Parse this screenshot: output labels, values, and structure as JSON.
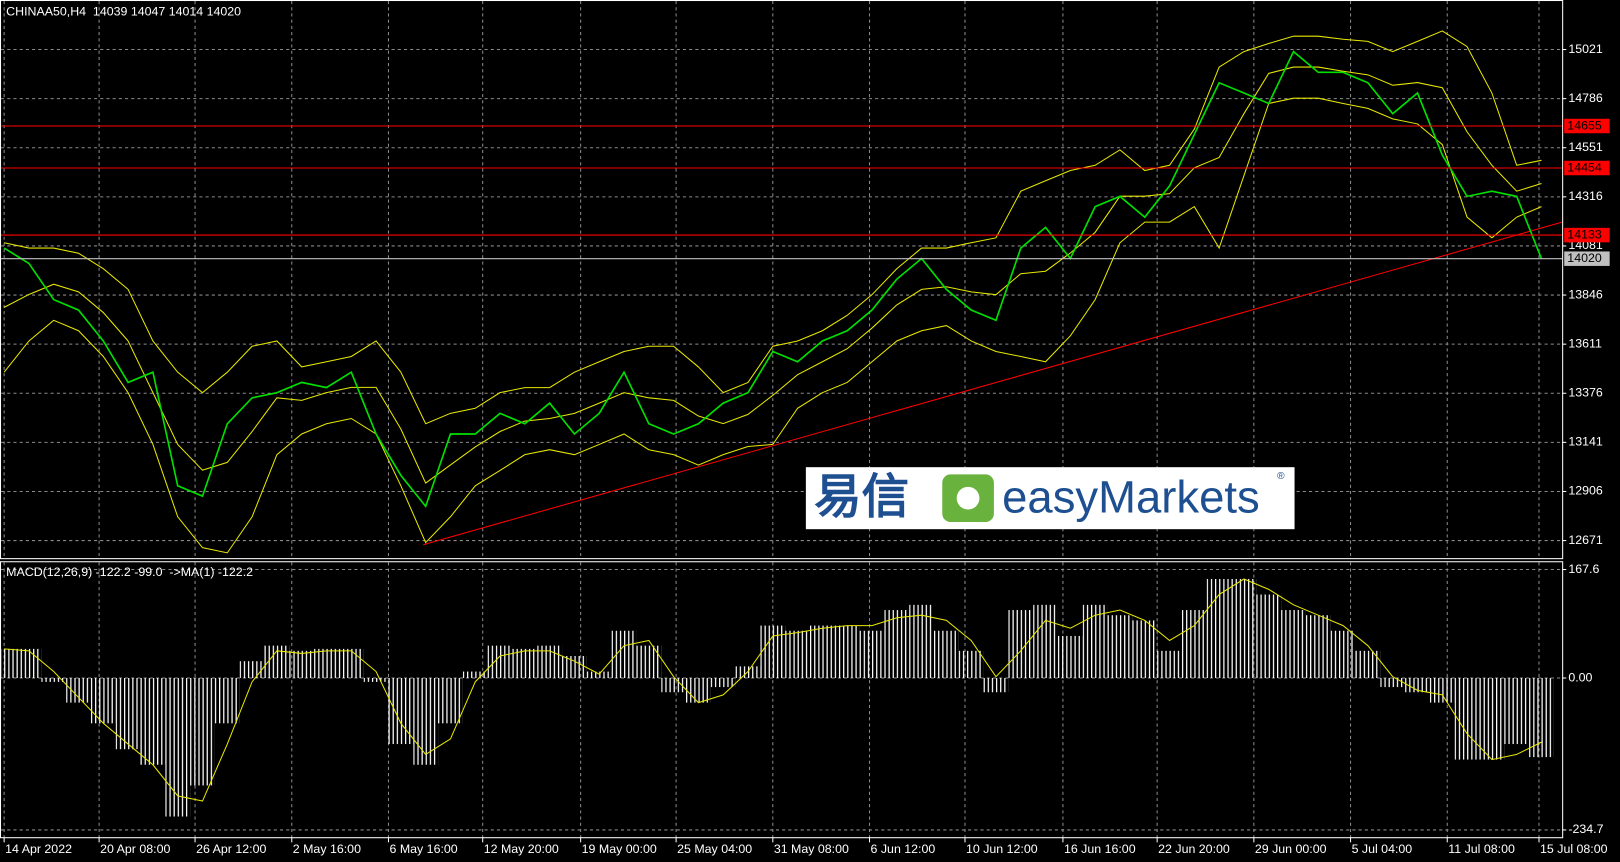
{
  "chart_data": [
    {
      "type": "line",
      "title": "CHINAA50,H4  14039 14047 14014 14020",
      "xlim": [
        0,
        62
      ],
      "ylim": [
        12587,
        15258
      ],
      "yticks": [
        15021,
        14786,
        14551,
        14316,
        14081,
        13846,
        13611,
        13376,
        13141,
        12906,
        12671
      ],
      "grid": true,
      "series": [
        {
          "color": "#e8e800",
          "values": [
            14096,
            14071,
            14071,
            14046,
            13972,
            13873,
            13626,
            13477,
            13379,
            13477,
            13601,
            13626,
            13502,
            13527,
            13552,
            13626,
            13477,
            13230,
            13280,
            13304,
            13379,
            13403,
            13403,
            13477,
            13527,
            13576,
            13601,
            13601,
            13502,
            13379,
            13428,
            13601,
            13626,
            13675,
            13749,
            13848,
            13972,
            14071,
            14071,
            14096,
            14120,
            14343,
            14393,
            14442,
            14467,
            14541,
            14442,
            14467,
            14640,
            14937,
            15011,
            15050,
            15085,
            15085,
            15070,
            15060,
            15011,
            15060,
            15110,
            15035,
            14813,
            14467,
            14491
          ]
        },
        {
          "color": "#e8e800",
          "values": [
            13787,
            13849,
            13898,
            13861,
            13762,
            13626,
            13379,
            13131,
            13008,
            13045,
            13193,
            13354,
            13342,
            13379,
            13404,
            13404,
            13205,
            12946,
            13033,
            13119,
            13193,
            13243,
            13255,
            13280,
            13329,
            13379,
            13354,
            13342,
            13267,
            13231,
            13275,
            13366,
            13465,
            13527,
            13589,
            13688,
            13799,
            13873,
            13886,
            13861,
            13848,
            13948,
            13960,
            14047,
            14146,
            14319,
            14319,
            14331,
            14455,
            14504,
            14714,
            14907,
            14937,
            14937,
            14917,
            14900,
            14850,
            14863,
            14838,
            14627,
            14467,
            14343,
            14380
          ]
        },
        {
          "color": "#e8e800",
          "values": [
            13477,
            13626,
            13725,
            13675,
            13552,
            13379,
            13131,
            12785,
            12637,
            12612,
            12785,
            13082,
            13181,
            13230,
            13255,
            13181,
            12933,
            12661,
            12785,
            12933,
            13007,
            13082,
            13106,
            13082,
            13131,
            13181,
            13106,
            13082,
            13032,
            13082,
            13121,
            13131,
            13304,
            13379,
            13428,
            13527,
            13626,
            13675,
            13700,
            13626,
            13576,
            13552,
            13527,
            13651,
            13824,
            14096,
            14195,
            14195,
            14269,
            14071,
            14417,
            14763,
            14788,
            14788,
            14763,
            14739,
            14689,
            14665,
            14566,
            14219,
            14120,
            14219,
            14269
          ]
        },
        {
          "color": "#00e000",
          "values": [
            14071,
            13997,
            13824,
            13774,
            13626,
            13428,
            13477,
            12933,
            12884,
            13230,
            13354,
            13379,
            13428,
            13403,
            13477,
            13181,
            12983,
            12835,
            13181,
            13181,
            13280,
            13230,
            13329,
            13181,
            13280,
            13477,
            13230,
            13181,
            13230,
            13329,
            13379,
            13576,
            13527,
            13626,
            13675,
            13774,
            13922,
            14021,
            13873,
            13774,
            13725,
            14071,
            14170,
            14021,
            14269,
            14318,
            14219,
            14368,
            14615,
            14862,
            14813,
            14763,
            15011,
            14912,
            14912,
            14862,
            14714,
            14813,
            14516,
            14318,
            14343,
            14318,
            14020
          ]
        }
      ],
      "hlines": [
        {
          "value": 14655,
          "color": "#ff0000"
        },
        {
          "value": 14454,
          "color": "#ff0000"
        },
        {
          "value": 14133,
          "color": "#ff0000"
        },
        {
          "value": 14020,
          "color": "#c0c0c0"
        }
      ],
      "trendline": {
        "color": "#ff0000",
        "x": [
          16.9,
          62.83
        ],
        "y": [
          12651,
          14195
        ]
      }
    },
    {
      "type": "bar",
      "title": "MACD(12,26,9) -122.2 -99.0  ->MA(1) -122.2",
      "xlim": [
        0,
        62
      ],
      "ylim": [
        -245.9,
        180.4
      ],
      "yticks": [
        167.6,
        {
          "value": 0,
          "label": "0.00"
        },
        -234.7
      ],
      "xticks": [
        {
          "value": 0,
          "label": "14 Apr 2022"
        },
        {
          "value": 3.83,
          "label": "20 Apr 08:00"
        },
        {
          "value": 7.7,
          "label": "26 Apr 12:00"
        },
        {
          "value": 11.6,
          "label": "2 May 16:00"
        },
        {
          "value": 15.5,
          "label": "6 May 16:00"
        },
        {
          "value": 19.3,
          "label": "12 May 20:00"
        },
        {
          "value": 23.25,
          "label": "19 May 00:00"
        },
        {
          "value": 27.1,
          "label": "25 May 04:00"
        },
        {
          "value": 31,
          "label": "31 May 08:00"
        },
        {
          "value": 34.9,
          "label": "6 Jun 12:00"
        },
        {
          "value": 38.75,
          "label": "10 Jun 12:00"
        },
        {
          "value": 42.7,
          "label": "16 Jun 16:00"
        },
        {
          "value": 46.5,
          "label": "22 Jun 20:00"
        },
        {
          "value": 50.4,
          "label": "29 Jun 00:00"
        },
        {
          "value": 54.3,
          "label": "5 Jul 04:00"
        },
        {
          "value": 58.2,
          "label": "11 Jul 08:00"
        },
        {
          "value": 61.9,
          "label": "15 Jul 08:00"
        }
      ],
      "series": [
        {
          "type": "bar",
          "color": "#ffffff",
          "values": [
            45,
            45,
            -6,
            -38,
            -70,
            -110,
            -134,
            -214,
            -166,
            -70,
            26,
            50,
            42,
            45,
            45,
            -6,
            -102,
            -134,
            -70,
            10,
            50,
            45,
            50,
            34,
            10,
            73,
            50,
            -22,
            -38,
            -14,
            18,
            81,
            73,
            81,
            81,
            73,
            105,
            113,
            73,
            42,
            -22,
            105,
            113,
            65,
            113,
            97,
            89,
            42,
            105,
            153,
            153,
            129,
            105,
            97,
            73,
            42,
            -14,
            -22,
            -38,
            -126,
            -126,
            -102,
            -122.2
          ]
        },
        {
          "type": "line",
          "color": "#e8e800",
          "values": [
            45,
            42,
            10,
            -30,
            -70,
            -102,
            -134,
            -182,
            -190,
            -102,
            -6,
            42,
            38,
            42,
            42,
            10,
            -70,
            -118,
            -94,
            -6,
            34,
            42,
            42,
            26,
            6,
            50,
            58,
            2,
            -38,
            -26,
            10,
            65,
            70,
            77,
            81,
            81,
            93,
            97,
            89,
            58,
            2,
            42,
            89,
            77,
            97,
            105,
            89,
            58,
            81,
            129,
            153,
            137,
            113,
            97,
            81,
            50,
            2,
            -19,
            -26,
            -86,
            -126,
            -118,
            -99.0
          ]
        }
      ]
    }
  ],
  "logo": {
    "cn": "易信",
    "brand": "easyMarkets",
    "mark": "®"
  }
}
